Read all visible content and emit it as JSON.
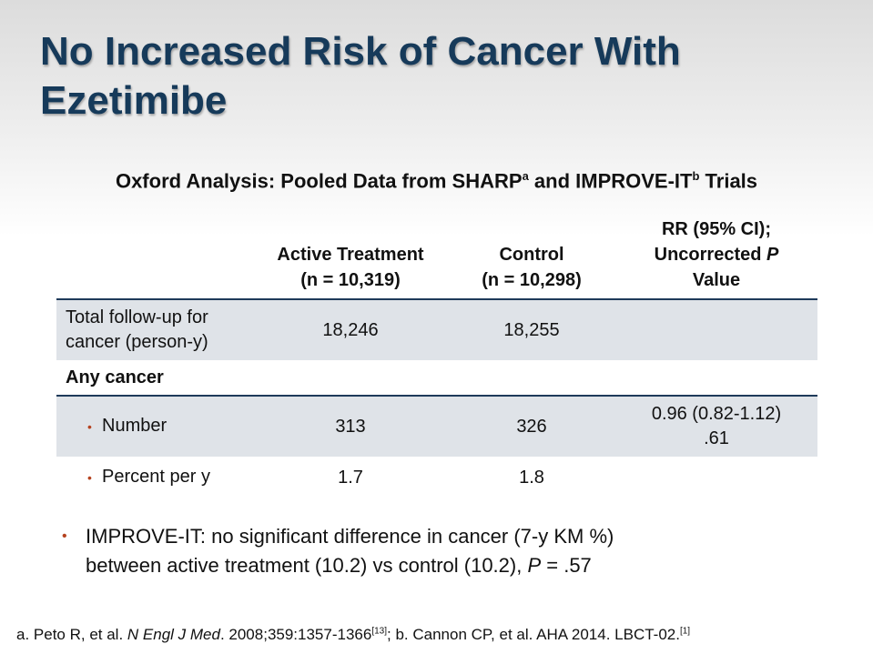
{
  "title": "No Increased Risk of Cancer With Ezetimibe",
  "subtitle": {
    "part1": "Oxford Analysis: Pooled Data from SHARP",
    "sup_a": "a",
    "part2": " and IMPROVE-IT",
    "sup_b": "b",
    "part3": " Trials"
  },
  "table": {
    "headers": {
      "active_line1": "Active Treatment",
      "active_line2": "(n = 10,319)",
      "control_line1": "Control",
      "control_line2": "(n =  10,298)",
      "rr_line1": "RR (95% CI);",
      "rr_line2_pre": "Uncorrected ",
      "rr_line2_italic": "P",
      "rr_line3": "Value"
    },
    "rows": {
      "followup": {
        "label_line1": "Total follow-up for",
        "label_line2": "cancer (person-y)",
        "active": "18,246",
        "control": "18,255",
        "rr": ""
      },
      "any_cancer": {
        "label": "Any cancer"
      },
      "number": {
        "bullet": "•",
        "label": "Number",
        "active": "313",
        "control": "326",
        "rr_line1": "0.96 (0.82-1.12)",
        "rr_line2": ".61"
      },
      "percent": {
        "bullet": "•",
        "label": "Percent per y",
        "active": "1.7",
        "control": "1.8"
      }
    }
  },
  "note": {
    "bullet": "•",
    "line1": "IMPROVE-IT: no significant difference in cancer (7-y KM %)",
    "line2_pre": "between active treatment (10.2) vs control (10.2), ",
    "line2_italic": "P",
    "line2_post": " = .57"
  },
  "footer": {
    "a_pre": "a. Peto R, et al. ",
    "a_journal": "N Engl J Med",
    "a_post": ". 2008;359:1357-1366",
    "a_ref": "[13]",
    "b_pre": "; b. Cannon CP, et al. AHA 2014. LBCT-02.",
    "b_ref": "[1]"
  },
  "colors": {
    "title": "#163a5a",
    "rule": "#1e3a5a",
    "shade": "#dfe3e8",
    "bullet": "#b5421f"
  }
}
